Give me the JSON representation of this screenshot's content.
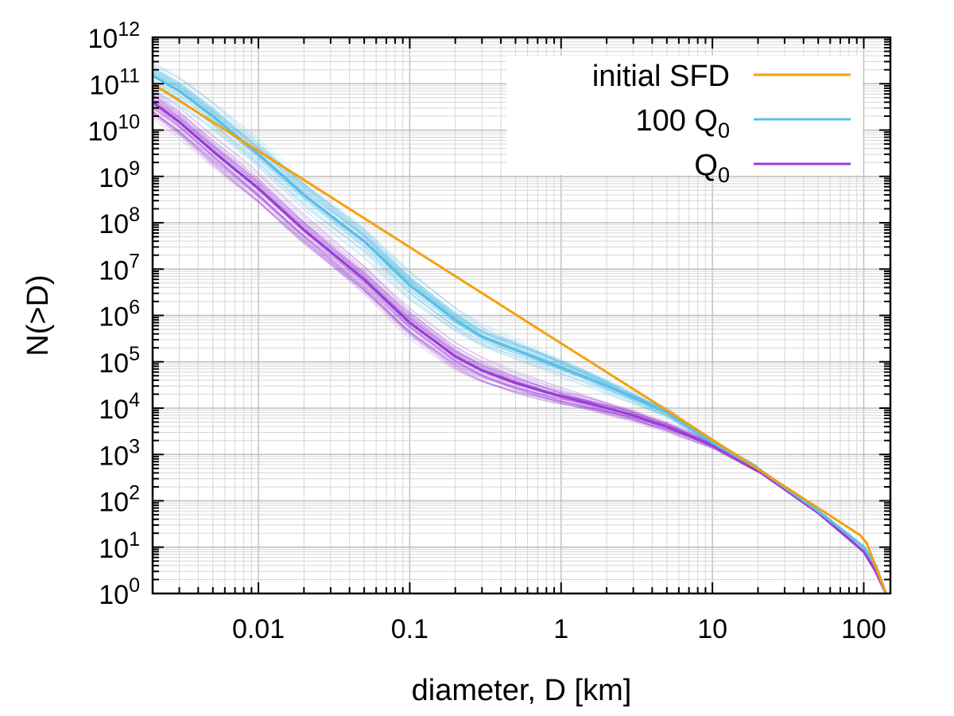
{
  "chart_data": {
    "type": "line",
    "title": "",
    "xlabel": "diameter, D [km]",
    "ylabel": "N(>D)",
    "xscale": "log",
    "yscale": "log",
    "xlim": [
      0.002,
      150
    ],
    "ylim": [
      1,
      1000000000000
    ],
    "grid": true,
    "legend_position": "top-right",
    "x_tick_labels": [
      "0.01",
      "0.1",
      "1",
      "10",
      "100"
    ],
    "y_tick_exponents": [
      "0",
      "1",
      "2",
      "3",
      "4",
      "5",
      "6",
      "7",
      "8",
      "9",
      "10",
      "11",
      "12"
    ],
    "y_tick_base": "10",
    "series": [
      {
        "name": "initial SFD",
        "label_main": "initial SFD",
        "label_sub": "",
        "color": "#f5a00a",
        "x": [
          0.002,
          1,
          5,
          50,
          95,
          105,
          140
        ],
        "y": [
          100000000000,
          250000,
          9000,
          70,
          18,
          12,
          1
        ]
      },
      {
        "name": "100 Q0",
        "label_main": "100 Q",
        "label_sub": "0",
        "color": "#5bbfe6",
        "x": [
          0.002,
          0.003,
          0.005,
          0.01,
          0.02,
          0.05,
          0.1,
          0.2,
          0.3,
          0.5,
          0.8,
          1,
          1.5,
          2,
          3,
          5,
          10,
          20,
          50,
          80,
          100,
          120,
          140
        ],
        "y": [
          150000000000,
          70000000000,
          20000000000,
          3000000000,
          400000000,
          40000000,
          4500000,
          800000,
          350000,
          180000,
          100000,
          75000,
          45000,
          30000,
          17000,
          8000,
          1800,
          500,
          60,
          18,
          10,
          4,
          1
        ]
      },
      {
        "name": "Q0",
        "label_main": "Q",
        "label_sub": "0",
        "color": "#9a3fd6",
        "x": [
          0.002,
          0.003,
          0.005,
          0.01,
          0.02,
          0.05,
          0.1,
          0.2,
          0.3,
          0.5,
          0.8,
          1,
          1.5,
          2,
          3,
          4,
          5,
          10,
          20,
          50,
          80,
          100,
          120,
          140
        ],
        "y": [
          40000000000,
          15000000000,
          3500000000,
          550000000,
          70000000,
          6000000,
          700000,
          130000,
          65000,
          35000,
          22000,
          18000,
          13000,
          10000,
          7000,
          5000,
          4000,
          1600,
          450,
          55,
          15,
          8,
          3,
          1
        ]
      }
    ]
  }
}
